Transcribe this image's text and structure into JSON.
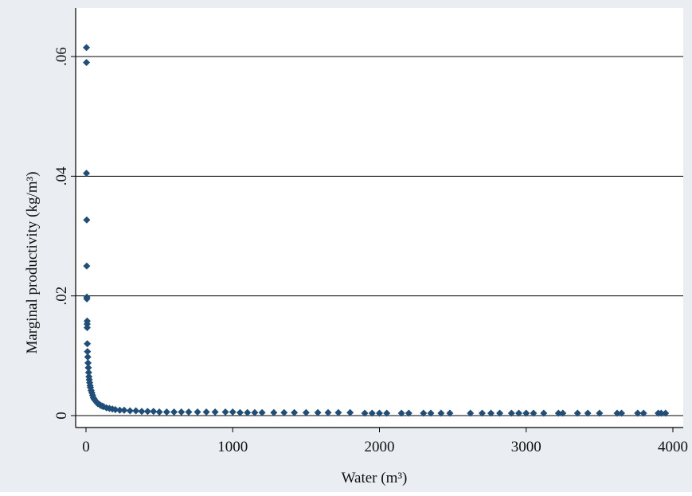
{
  "chart_data": {
    "type": "scatter",
    "x_label": "Water (m³)",
    "y_label": "Marginal productivity (kg/m³)",
    "color": "#1f4e79",
    "grid": true,
    "xlim": [
      0,
      4000
    ],
    "xticks": [
      0,
      1000,
      2000,
      3000,
      4000
    ],
    "ylim": [
      0,
      0.06
    ],
    "yticks": [
      0,
      {
        "value": 0.02,
        "label": ".02"
      },
      {
        "value": 0.04,
        "label": ".04"
      },
      {
        "value": 0.06,
        "label": ".06"
      }
    ],
    "x": [
      3,
      3,
      3,
      5,
      5,
      6,
      6,
      8,
      8,
      8,
      9,
      10,
      12,
      14,
      16,
      18,
      20,
      22,
      25,
      28,
      30,
      35,
      40,
      45,
      50,
      55,
      60,
      70,
      80,
      90,
      100,
      110,
      120,
      140,
      160,
      180,
      200,
      230,
      260,
      300,
      340,
      380,
      420,
      460,
      500,
      550,
      600,
      650,
      700,
      760,
      820,
      880,
      950,
      1000,
      1050,
      1100,
      1150,
      1200,
      1280,
      1350,
      1420,
      1500,
      1580,
      1650,
      1720,
      1800,
      1900,
      1950,
      2000,
      2050,
      2150,
      2200,
      2300,
      2350,
      2420,
      2480,
      2620,
      2700,
      2760,
      2820,
      2900,
      2950,
      3000,
      3050,
      3120,
      3220,
      3250,
      3350,
      3420,
      3500,
      3620,
      3650,
      3760,
      3800,
      3900,
      3920,
      3950
    ],
    "values": [
      0.0615,
      0.059,
      0.0405,
      0.0327,
      0.025,
      0.0198,
      0.0195,
      0.0158,
      0.0153,
      0.0147,
      0.012,
      0.0107,
      0.0098,
      0.0088,
      0.008,
      0.0072,
      0.0065,
      0.006,
      0.0055,
      0.005,
      0.0047,
      0.0042,
      0.0038,
      0.0034,
      0.003,
      0.0028,
      0.0026,
      0.0023,
      0.002,
      0.0019,
      0.0017,
      0.0016,
      0.0015,
      0.0013,
      0.0012,
      0.0011,
      0.001,
      0.0009,
      0.0009,
      0.0008,
      0.0008,
      0.0007,
      0.0007,
      0.0007,
      0.0006,
      0.0006,
      0.0006,
      0.0006,
      0.0006,
      0.0006,
      0.0006,
      0.0006,
      0.0006,
      0.0006,
      0.0005,
      0.0005,
      0.0005,
      0.0005,
      0.0005,
      0.0005,
      0.0005,
      0.0005,
      0.0005,
      0.0005,
      0.0005,
      0.0005,
      0.0004,
      0.0004,
      0.0004,
      0.0004,
      0.0004,
      0.0004,
      0.0004,
      0.0004,
      0.0004,
      0.0004,
      0.0004,
      0.0004,
      0.0004,
      0.0004,
      0.0004,
      0.0004,
      0.0004,
      0.0004,
      0.0004,
      0.0004,
      0.0004,
      0.0004,
      0.0004,
      0.0004,
      0.0004,
      0.0004,
      0.0004,
      0.0004,
      0.0004,
      0.0004,
      0.0004
    ]
  }
}
